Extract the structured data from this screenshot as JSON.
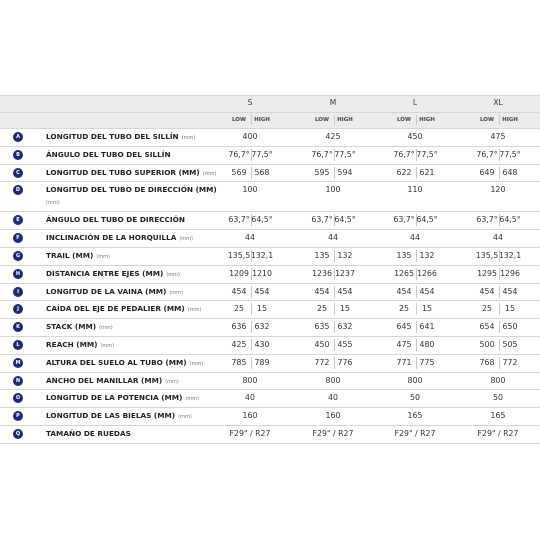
{
  "table": {
    "sizes": [
      "S",
      "M",
      "L",
      "XL"
    ],
    "subheader": [
      [
        "LOW",
        "HIGH"
      ],
      [
        "LOW",
        "HIGH"
      ],
      [
        "LOW",
        "HIGH"
      ],
      [
        "LOW",
        "HIGH"
      ]
    ],
    "rows": [
      {
        "letter": "A",
        "label": "LONGITUD DEL TUBO DEL SILLÍN",
        "unit": "(mm)",
        "cells": [
          [
            "400"
          ],
          [
            "425"
          ],
          [
            "450"
          ],
          [
            "475"
          ]
        ]
      },
      {
        "letter": "B",
        "label": "ÁNGULO DEL TUBO DEL SILLÍN",
        "cells": [
          [
            "76,7°",
            "77,5°"
          ],
          [
            "76,7°",
            "77,5°"
          ],
          [
            "76,7°",
            "77,5°"
          ],
          [
            "76,7°",
            "77,5°"
          ]
        ]
      },
      {
        "letter": "C",
        "label": "LONGITUD DEL TUBO SUPERIOR (MM)",
        "unit": "(mm)",
        "cells": [
          [
            "569",
            "568"
          ],
          [
            "595",
            "594"
          ],
          [
            "622",
            "621"
          ],
          [
            "649",
            "648"
          ]
        ]
      },
      {
        "letter": "D",
        "label": "LONGITUD DEL TUBO DE DIRECCIÓN (MM)",
        "unit": "(mm)",
        "cells": [
          [
            "100"
          ],
          [
            "100"
          ],
          [
            "110"
          ],
          [
            "120"
          ]
        ]
      },
      {
        "letter": "E",
        "label": "ÁNGULO DEL TUBO DE DIRECCIÓN",
        "cells": [
          [
            "63,7°",
            "64,5°"
          ],
          [
            "63,7°",
            "64,5°"
          ],
          [
            "63,7°",
            "64,5°"
          ],
          [
            "63,7°",
            "64,5°"
          ]
        ]
      },
      {
        "letter": "F",
        "label": "INCLINACIÓN DE LA HORQUILLA",
        "unit": "(mm)",
        "cells": [
          [
            "44"
          ],
          [
            "44"
          ],
          [
            "44"
          ],
          [
            "44"
          ]
        ]
      },
      {
        "letter": "G",
        "label": "TRAIL (MM)",
        "unit": "(mm)",
        "cells": [
          [
            "135,5",
            "132,1"
          ],
          [
            "135",
            "132"
          ],
          [
            "135",
            "132"
          ],
          [
            "135,5",
            "132,1"
          ]
        ]
      },
      {
        "letter": "H",
        "label": "DISTANCIA ENTRE EJES (MM)",
        "unit": "(mm)",
        "cells": [
          [
            "1209",
            "1210"
          ],
          [
            "1236",
            "1237"
          ],
          [
            "1265",
            "1266"
          ],
          [
            "1295",
            "1296"
          ]
        ]
      },
      {
        "letter": "I",
        "label": "LONGITUD DE LA VAINA (MM)",
        "unit": "(mm)",
        "cells": [
          [
            "454",
            "454"
          ],
          [
            "454",
            "454"
          ],
          [
            "454",
            "454"
          ],
          [
            "454",
            "454"
          ]
        ]
      },
      {
        "letter": "J",
        "label": "CAÍDA DEL EJE DE PEDALIER (MM)",
        "unit": "(mm)",
        "cells": [
          [
            "25",
            "15"
          ],
          [
            "25",
            "15"
          ],
          [
            "25",
            "15"
          ],
          [
            "25",
            "15"
          ]
        ]
      },
      {
        "letter": "K",
        "label": "STACK (MM)",
        "unit": "(mm)",
        "cells": [
          [
            "636",
            "632"
          ],
          [
            "635",
            "632"
          ],
          [
            "645",
            "641"
          ],
          [
            "654",
            "650"
          ]
        ]
      },
      {
        "letter": "L",
        "label": "REACH (MM)",
        "unit": "(mm)",
        "cells": [
          [
            "425",
            "430"
          ],
          [
            "450",
            "455"
          ],
          [
            "475",
            "480"
          ],
          [
            "500",
            "505"
          ]
        ]
      },
      {
        "letter": "M",
        "label": "ALTURA DEL SUELO AL TUBO (MM)",
        "unit": "(mm)",
        "cells": [
          [
            "785",
            "789"
          ],
          [
            "772",
            "776"
          ],
          [
            "771",
            "775"
          ],
          [
            "768",
            "772"
          ]
        ]
      },
      {
        "letter": "N",
        "label": "ANCHO DEL MANILLAR (MM)",
        "unit": "(mm)",
        "cells": [
          [
            "800"
          ],
          [
            "800"
          ],
          [
            "800"
          ],
          [
            "800"
          ]
        ]
      },
      {
        "letter": "O",
        "label": "LONGITUD DE LA POTENCIA (MM)",
        "unit": "(mm)",
        "cells": [
          [
            "40"
          ],
          [
            "40"
          ],
          [
            "50"
          ],
          [
            "50"
          ]
        ]
      },
      {
        "letter": "P",
        "label": "LONGITUD DE LAS BIELAS (MM)",
        "unit": "(mm)",
        "cells": [
          [
            "160"
          ],
          [
            "160"
          ],
          [
            "165"
          ],
          [
            "165"
          ]
        ]
      },
      {
        "letter": "Q",
        "label": "TAMAÑO DE RUEDAS",
        "cells": [
          [
            "F29\" / R27"
          ],
          [
            "F29\" / R27"
          ],
          [
            "F29\" / R27"
          ],
          [
            "F29\" / R27"
          ]
        ]
      }
    ]
  }
}
